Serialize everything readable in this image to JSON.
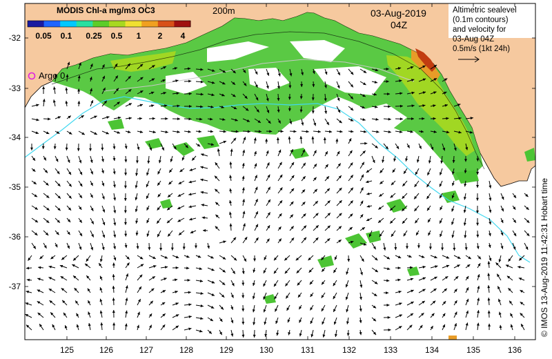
{
  "colorbar": {
    "title": "MODIS Chl-a mg/m3 OC3",
    "ticks": [
      "0.05",
      "0.1",
      "0.25",
      "0.5",
      "1",
      "2",
      "4"
    ],
    "colors": [
      "#1a1aa0",
      "#1e64ff",
      "#00c8ff",
      "#28e0a0",
      "#5ccd28",
      "#a8d820",
      "#f0e030",
      "#f0a020",
      "#d85018",
      "#a01010"
    ]
  },
  "contour_label": "200m",
  "date": "03-Aug-2019",
  "time": "04Z",
  "argo_label": "Argo 0",
  "info": {
    "line1": "Altimetric sealevel",
    "line2": "(0.1m contours)",
    "line3": "and velocity for",
    "line4": "03-Aug 04Z",
    "line5": "0.5m/s (1kt 24h)"
  },
  "credit": "© IMOS 13-Aug-2019 11:42:31 Hobart time",
  "y_axis": [
    "-32",
    "-33",
    "-34",
    "-35",
    "-36",
    "-37"
  ],
  "x_axis": [
    "125",
    "126",
    "127",
    "128",
    "129",
    "130",
    "131",
    "132",
    "133",
    "134",
    "135",
    "136"
  ],
  "colors": {
    "land": "#f6c99f",
    "ocean": "#ffffff",
    "chl_green": "#4cc434",
    "chl_light": "#a8d820",
    "chl_orange": "#e89c28",
    "chl_red": "#c23c10",
    "current_line": "#40d8f0",
    "argo": "#e020e0"
  }
}
